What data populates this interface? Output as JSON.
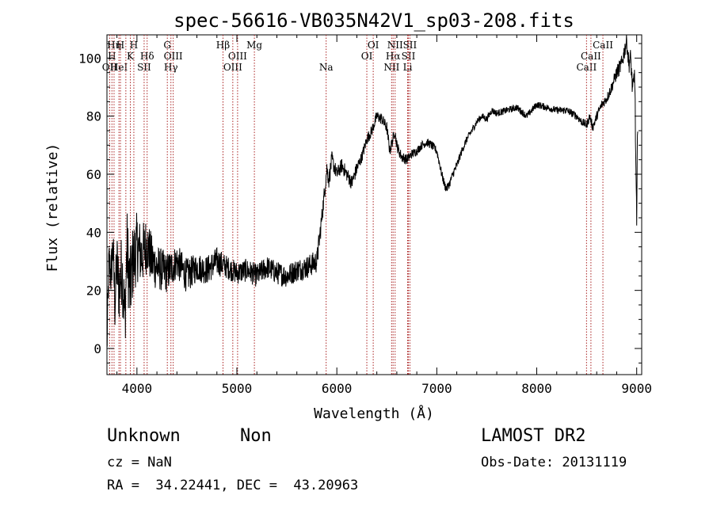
{
  "chart_data": {
    "type": "line",
    "title": "spec-56616-VB035N42V1_sp03-208.fits",
    "xlabel": "Wavelength (Å)",
    "ylabel": "Flux (relative)",
    "xlim": [
      3700,
      9050
    ],
    "ylim": [
      -9,
      108
    ],
    "x_ticks": [
      4000,
      5000,
      6000,
      7000,
      8000,
      9000
    ],
    "x_tick_labels": [
      "4000",
      "5000",
      "6000",
      "7000",
      "8000",
      "9000"
    ],
    "y_ticks": [
      0,
      20,
      40,
      60,
      80,
      100
    ],
    "y_tick_labels": [
      "0",
      "20",
      "40",
      "60",
      "80",
      "100"
    ],
    "grid": false,
    "line_color": "#000000",
    "marker_line_color": "#aa2222",
    "spectrum": {
      "x": [
        3700,
        3720,
        3740,
        3760,
        3780,
        3800,
        3820,
        3850,
        3880,
        3900,
        3930,
        3960,
        4000,
        4050,
        4100,
        4150,
        4200,
        4300,
        4400,
        4500,
        4600,
        4700,
        4800,
        4900,
        5000,
        5100,
        5200,
        5300,
        5400,
        5500,
        5600,
        5700,
        5800,
        5850,
        5880,
        5900,
        5920,
        5950,
        6000,
        6050,
        6100,
        6150,
        6200,
        6250,
        6300,
        6350,
        6400,
        6450,
        6500,
        6530,
        6560,
        6580,
        6600,
        6620,
        6650,
        6700,
        6750,
        6800,
        6850,
        6900,
        6950,
        7000,
        7050,
        7080,
        7100,
        7130,
        7160,
        7200,
        7250,
        7300,
        7350,
        7400,
        7450,
        7500,
        7550,
        7600,
        7700,
        7800,
        7900,
        8000,
        8100,
        8200,
        8300,
        8400,
        8450,
        8500,
        8530,
        8560,
        8600,
        8650,
        8700,
        8750,
        8800,
        8850,
        8880,
        8900,
        8920,
        8940,
        8960,
        8980,
        9000,
        9010
      ],
      "y": [
        0,
        30,
        25,
        35,
        15,
        30,
        20,
        28,
        10,
        35,
        20,
        30,
        35,
        32,
        36,
        30,
        28,
        26,
        30,
        25,
        28,
        27,
        30,
        28,
        26,
        27,
        25,
        28,
        26,
        25,
        27,
        28,
        30,
        45,
        55,
        62,
        58,
        65,
        60,
        63,
        60,
        57,
        62,
        66,
        72,
        75,
        80,
        79,
        76,
        68,
        72,
        75,
        70,
        68,
        66,
        65,
        67,
        68,
        70,
        71,
        70,
        68,
        60,
        56,
        55,
        57,
        60,
        63,
        68,
        72,
        75,
        78,
        80,
        79,
        82,
        81,
        82,
        83,
        80,
        84,
        83,
        82,
        82,
        80,
        78,
        77,
        80,
        76,
        80,
        84,
        86,
        90,
        95,
        98,
        103,
        106,
        98,
        100,
        88,
        95,
        40,
        80
      ],
      "noise": [
        8,
        8,
        8,
        9,
        10,
        11,
        12,
        13,
        13,
        14,
        14,
        13,
        12,
        11,
        10,
        9,
        8,
        7,
        6,
        6,
        5,
        5,
        5,
        4,
        4,
        4,
        4,
        4,
        4,
        4,
        4,
        4,
        4,
        3.5,
        3,
        3,
        3,
        3,
        2.5,
        2.5,
        2.5,
        2.5,
        2.5,
        2,
        2,
        2,
        2,
        2,
        2,
        2,
        2,
        2,
        2,
        2,
        1.8,
        1.8,
        1.6,
        1.5,
        1.5,
        1.5,
        1.5,
        1.5,
        1.5,
        1.5,
        1.5,
        1.5,
        1.5,
        1.5,
        1.3,
        1.3,
        1.2,
        1.2,
        1.2,
        1.2,
        1.2,
        1.2,
        1.2,
        1.2,
        1.2,
        1.2,
        1.2,
        1.2,
        1.3,
        1.3,
        1.4,
        1.5,
        1.5,
        1.5,
        1.6,
        1.6,
        1.8,
        2,
        2.5,
        3,
        3,
        3,
        3.5,
        3.5,
        4,
        5,
        6,
        6
      ]
    },
    "line_markers": [
      {
        "x": 3727,
        "label": "OII",
        "row": 2
      },
      {
        "x": 3750,
        "label": "H",
        "row": 1
      },
      {
        "x": 3771,
        "label": "Hη",
        "row": 0
      },
      {
        "x": 3820,
        "label": "HeI",
        "row": 2
      },
      {
        "x": 3835,
        "label": "H",
        "row": 0
      },
      {
        "x": 3889,
        "label": "",
        "row": 0
      },
      {
        "x": 3934,
        "label": "K",
        "row": 1
      },
      {
        "x": 3969,
        "label": "H",
        "row": 0
      },
      {
        "x": 4072,
        "label": "SII",
        "row": 2
      },
      {
        "x": 4102,
        "label": "Hδ",
        "row": 1
      },
      {
        "x": 4304,
        "label": "G",
        "row": 0
      },
      {
        "x": 4340,
        "label": "Hγ",
        "row": 2
      },
      {
        "x": 4363,
        "label": "OIII",
        "row": 1
      },
      {
        "x": 4861,
        "label": "Hβ",
        "row": 0
      },
      {
        "x": 4959,
        "label": "OIII",
        "row": 2
      },
      {
        "x": 5007,
        "label": "OIII",
        "row": 1
      },
      {
        "x": 5175,
        "label": "Mg",
        "row": 0
      },
      {
        "x": 5893,
        "label": "Na",
        "row": 2
      },
      {
        "x": 6300,
        "label": "OI",
        "row": 1
      },
      {
        "x": 6364,
        "label": "OI",
        "row": 0
      },
      {
        "x": 6548,
        "label": "NII",
        "row": 2
      },
      {
        "x": 6563,
        "label": "Hα",
        "row": 1
      },
      {
        "x": 6583,
        "label": "NII",
        "row": 0
      },
      {
        "x": 6708,
        "label": "Li",
        "row": 2
      },
      {
        "x": 6716,
        "label": "SII",
        "row": 1
      },
      {
        "x": 6731,
        "label": "SII",
        "row": 0
      },
      {
        "x": 8498,
        "label": "CaII",
        "row": 2
      },
      {
        "x": 8542,
        "label": "CaII",
        "row": 1
      },
      {
        "x": 8662,
        "label": "CaII",
        "row": 0
      }
    ]
  },
  "info": {
    "class_label": "Unknown",
    "subclass_label": "Non",
    "cz": "cz = NaN",
    "coords": "RA =  34.22441, DEC =  43.20963",
    "survey": "LAMOST DR2",
    "obs_date": "Obs-Date: 20131119"
  }
}
